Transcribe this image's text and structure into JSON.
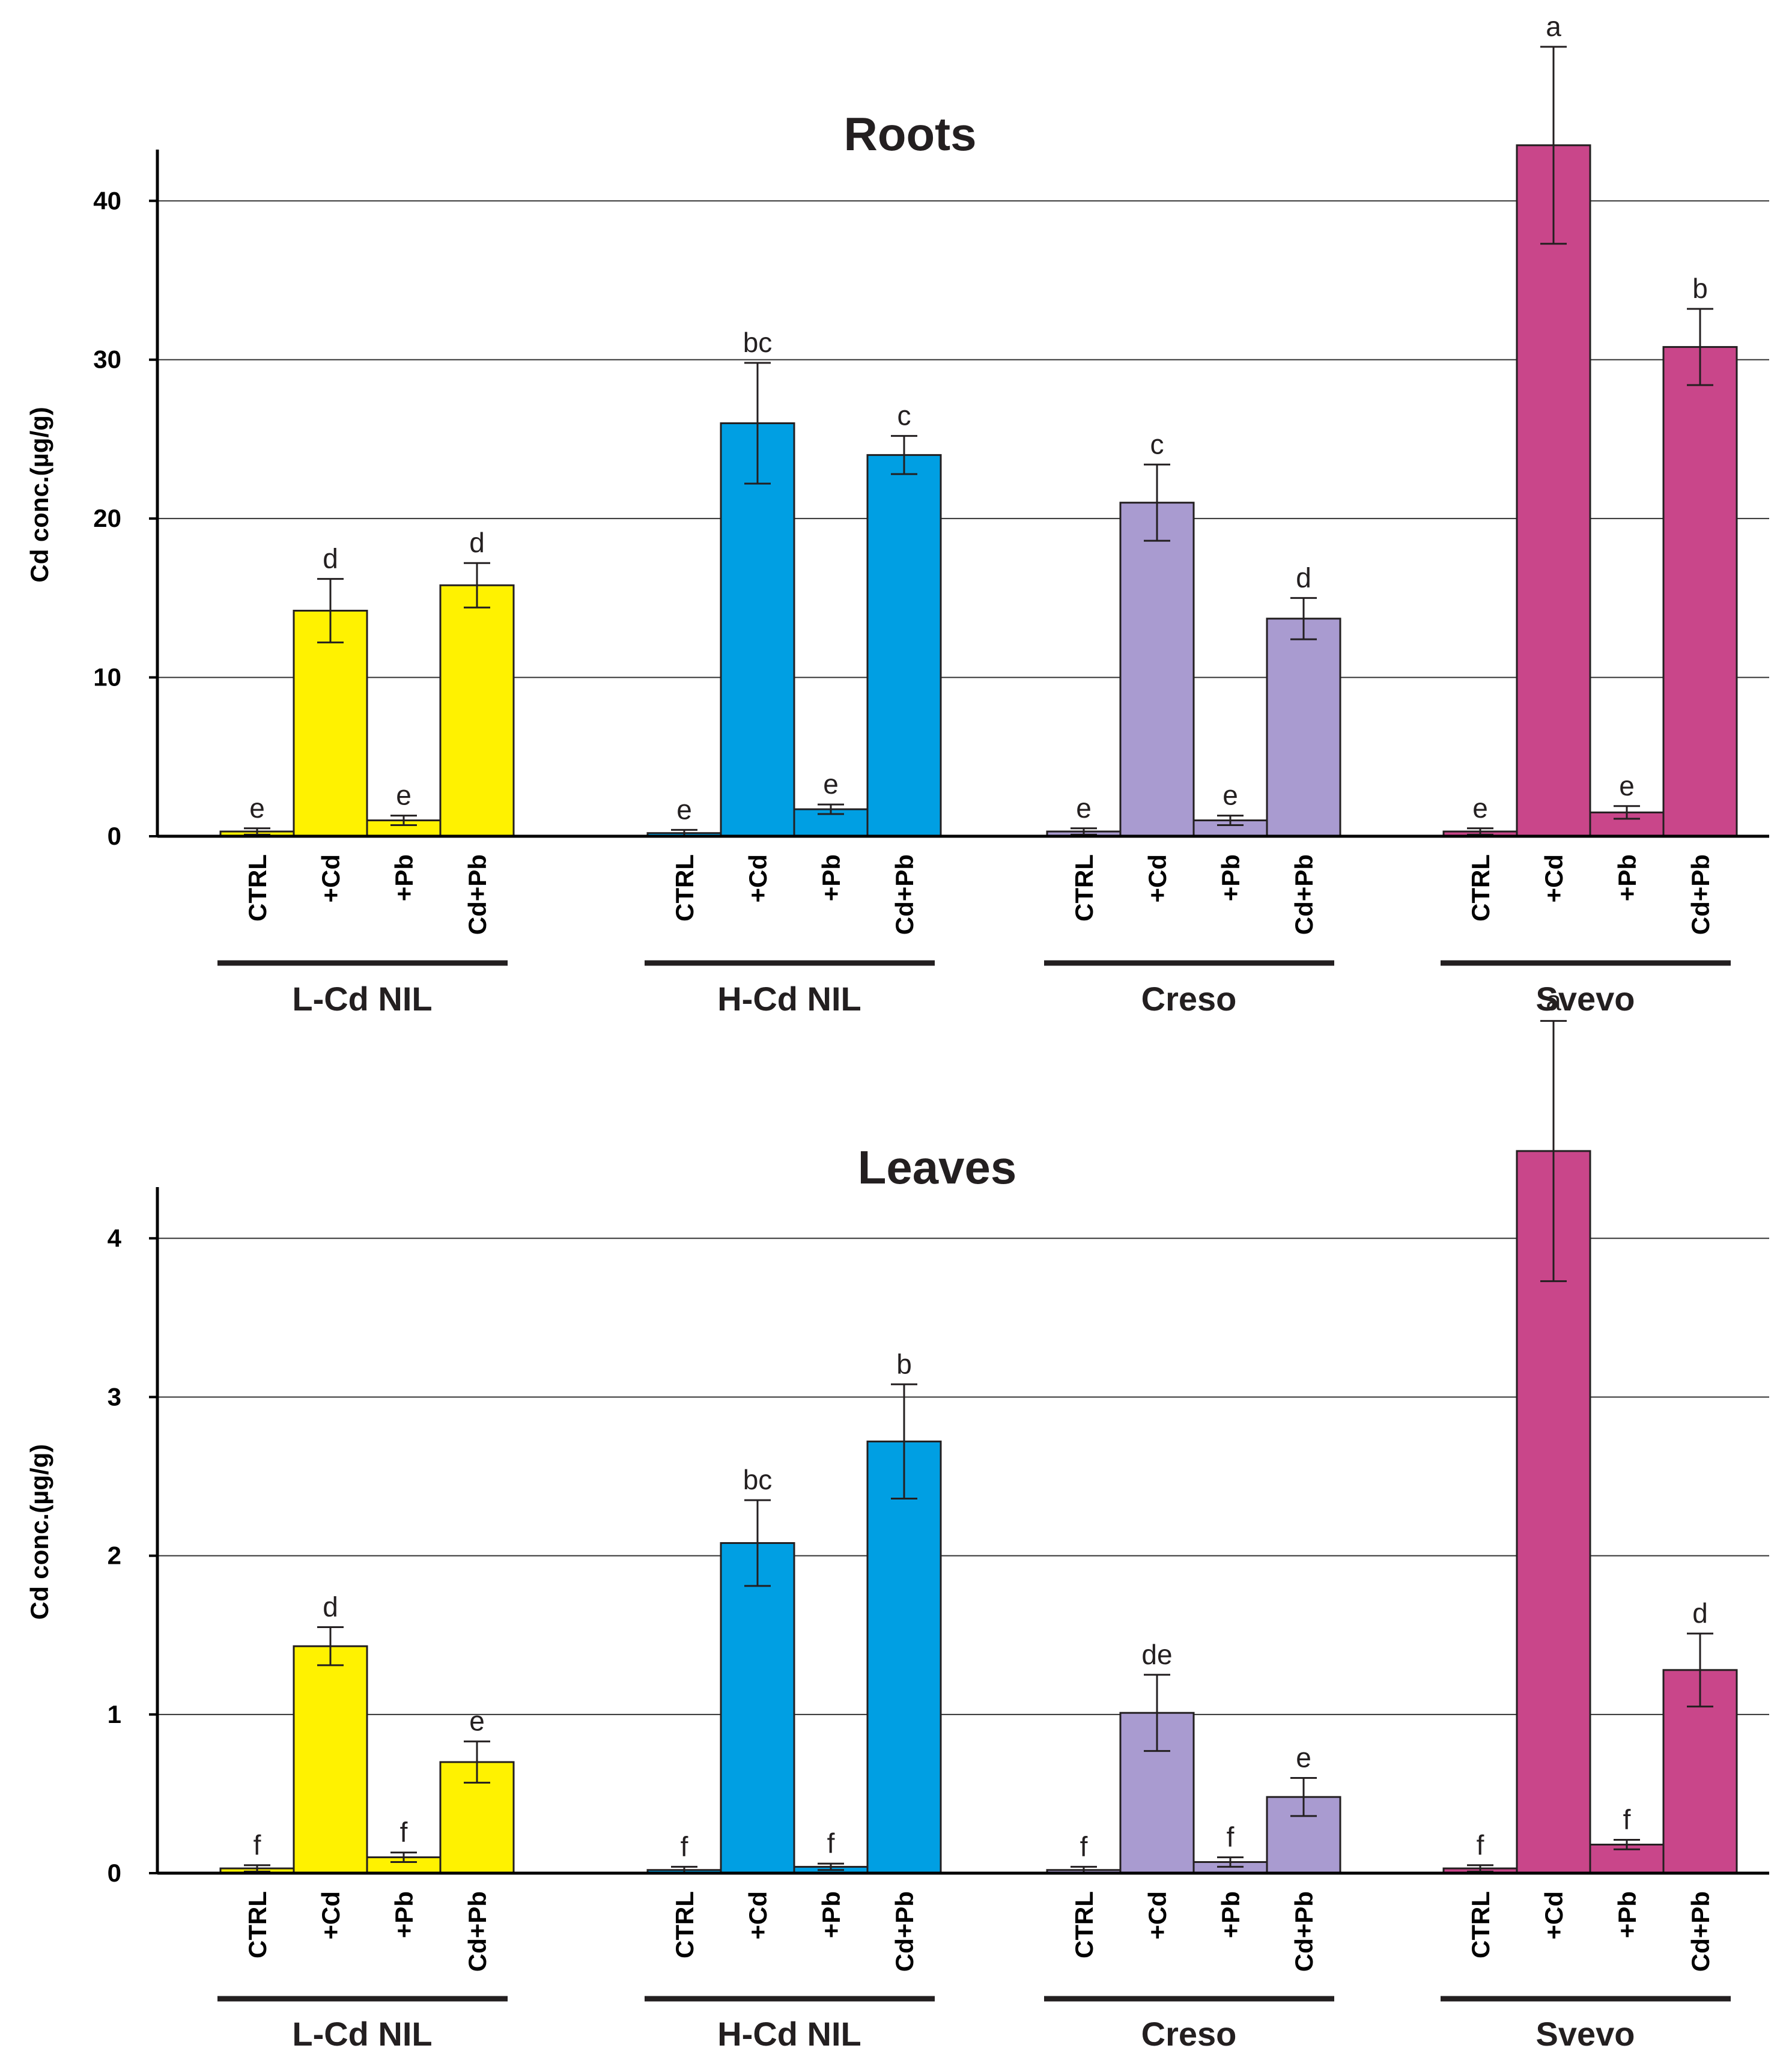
{
  "chart_data": [
    {
      "type": "bar",
      "title": "Roots",
      "ylabel": "Cd conc.(µg/g)",
      "xlabel": "",
      "ylim": [
        0,
        43
      ],
      "yticks": [
        0,
        10,
        20,
        30,
        40
      ],
      "grid": true,
      "treatments": [
        "CTRL",
        "+Cd",
        "+Pb",
        "Cd+Pb"
      ],
      "groups": [
        {
          "name": "L-Cd NIL",
          "color": "#FFF200",
          "values": [
            0.3,
            14.2,
            1.0,
            15.8
          ],
          "errors": [
            0.2,
            2.0,
            0.3,
            1.4
          ],
          "letters": [
            "e",
            "d",
            "e",
            "d"
          ]
        },
        {
          "name": "H-Cd NIL",
          "color": "#009FE3",
          "values": [
            0.2,
            26.0,
            1.7,
            24.0
          ],
          "errors": [
            0.2,
            3.8,
            0.3,
            1.2
          ],
          "letters": [
            "e",
            "bc",
            "e",
            "c"
          ]
        },
        {
          "name": "Creso",
          "color": "#A99BD0",
          "values": [
            0.3,
            21.0,
            1.0,
            13.7
          ],
          "errors": [
            0.2,
            2.4,
            0.3,
            1.3
          ],
          "letters": [
            "e",
            "c",
            "e",
            "d"
          ]
        },
        {
          "name": "Svevo",
          "color": "#C9468A",
          "values": [
            0.3,
            43.5,
            1.5,
            30.8
          ],
          "errors": [
            0.2,
            6.2,
            0.4,
            2.4
          ],
          "letters": [
            "e",
            "a",
            "e",
            "b"
          ]
        }
      ]
    },
    {
      "type": "bar",
      "title": "Leaves",
      "ylabel": "Cd conc.(µg/g)",
      "xlabel": "",
      "ylim": [
        0,
        4.3
      ],
      "yticks": [
        0,
        1,
        2,
        3,
        4
      ],
      "grid": true,
      "treatments": [
        "CTRL",
        "+Cd",
        "+Pb",
        "Cd+Pb"
      ],
      "groups": [
        {
          "name": "L-Cd NIL",
          "color": "#FFF200",
          "values": [
            0.03,
            1.43,
            0.1,
            0.7
          ],
          "errors": [
            0.02,
            0.12,
            0.03,
            0.13
          ],
          "letters": [
            "f",
            "d",
            "f",
            "e"
          ]
        },
        {
          "name": "H-Cd NIL",
          "color": "#009FE3",
          "values": [
            0.02,
            2.08,
            0.04,
            2.72
          ],
          "errors": [
            0.02,
            0.27,
            0.02,
            0.36
          ],
          "letters": [
            "f",
            "bc",
            "f",
            "b"
          ]
        },
        {
          "name": "Creso",
          "color": "#A99BD0",
          "values": [
            0.02,
            1.01,
            0.07,
            0.48
          ],
          "errors": [
            0.02,
            0.24,
            0.03,
            0.12
          ],
          "letters": [
            "f",
            "de",
            "f",
            "e"
          ]
        },
        {
          "name": "Svevo",
          "color": "#C9468A",
          "values": [
            0.03,
            4.55,
            0.18,
            1.28
          ],
          "errors": [
            0.02,
            0.82,
            0.03,
            0.23
          ],
          "letters": [
            "f",
            "a",
            "f",
            "d"
          ]
        }
      ]
    }
  ]
}
